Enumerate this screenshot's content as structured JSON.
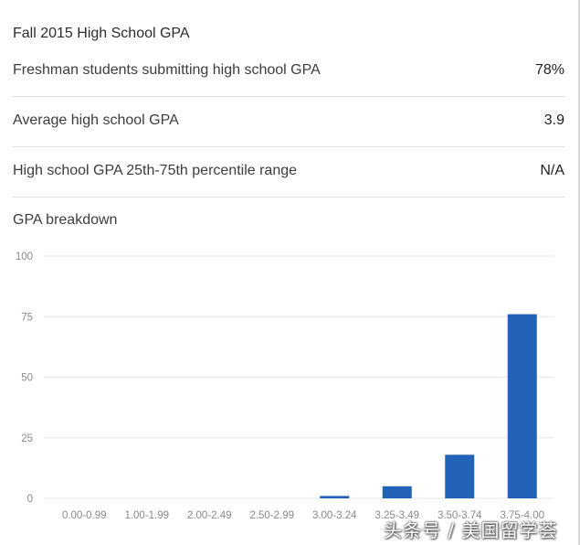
{
  "header": {
    "title": "Fall 2015 High School GPA"
  },
  "stats": [
    {
      "label": "Freshman students submitting high school GPA",
      "value": "78%"
    },
    {
      "label": "Average high school GPA",
      "value": "3.9"
    },
    {
      "label": "High school GPA 25th-75th percentile range",
      "value": "N/A"
    }
  ],
  "breakdown_label": "GPA breakdown",
  "colors": {
    "bar": "#2362b9",
    "grid": "#e6e6e6",
    "axis_text": "#8a8a8a"
  },
  "chart_data": {
    "type": "bar",
    "title": "",
    "xlabel": "",
    "ylabel": "",
    "categories": [
      "0.00-0.99",
      "1.00-1.99",
      "2.00-2.49",
      "2.50-2.99",
      "3.00-3.24",
      "3.25-3.49",
      "3.50-3.74",
      "3.75-4.00"
    ],
    "values": [
      0,
      0,
      0,
      0,
      1,
      5,
      18,
      76
    ],
    "ylim": [
      0,
      100
    ],
    "yticks": [
      "0",
      "25",
      "50",
      "75",
      "100"
    ],
    "grid": true,
    "legend": "none"
  },
  "watermark": "头条号 / 美国留学荟"
}
